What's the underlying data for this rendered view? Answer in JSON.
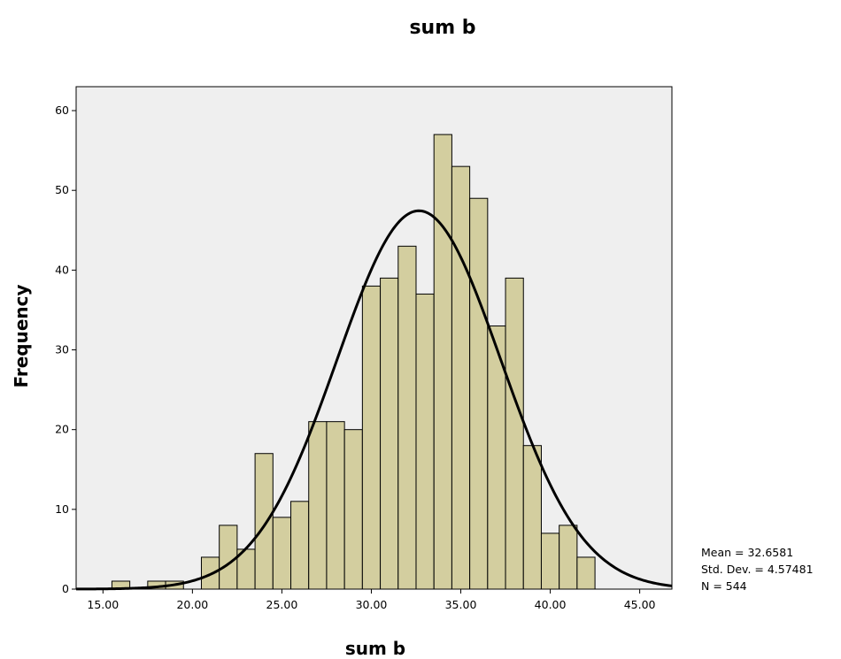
{
  "chart_data": {
    "type": "bar",
    "title": "sum b",
    "xlabel": "sum b",
    "ylabel": "Frequency",
    "xlim": [
      13.5,
      46.8
    ],
    "ylim": [
      0,
      63
    ],
    "x_ticks": [
      15,
      20,
      25,
      30,
      35,
      40,
      45
    ],
    "x_tick_labels": [
      "15.00",
      "20.00",
      "25.00",
      "30.00",
      "35.00",
      "40.00",
      "45.00"
    ],
    "y_ticks": [
      0,
      10,
      20,
      30,
      40,
      50,
      60
    ],
    "y_tick_labels": [
      "0",
      "10",
      "20",
      "30",
      "40",
      "50",
      "60"
    ],
    "bin_width": 1,
    "bins": [
      {
        "start": 15.5,
        "end": 16.5,
        "count": 1
      },
      {
        "start": 17.5,
        "end": 18.5,
        "count": 1
      },
      {
        "start": 18.5,
        "end": 19.5,
        "count": 1
      },
      {
        "start": 20.5,
        "end": 21.5,
        "count": 4
      },
      {
        "start": 21.5,
        "end": 22.5,
        "count": 8
      },
      {
        "start": 22.5,
        "end": 23.5,
        "count": 5
      },
      {
        "start": 23.5,
        "end": 24.5,
        "count": 17
      },
      {
        "start": 24.5,
        "end": 25.5,
        "count": 9
      },
      {
        "start": 25.5,
        "end": 26.5,
        "count": 11
      },
      {
        "start": 26.5,
        "end": 27.5,
        "count": 21
      },
      {
        "start": 27.5,
        "end": 28.5,
        "count": 21
      },
      {
        "start": 28.5,
        "end": 29.5,
        "count": 20
      },
      {
        "start": 29.5,
        "end": 30.5,
        "count": 38
      },
      {
        "start": 30.5,
        "end": 31.5,
        "count": 39
      },
      {
        "start": 31.5,
        "end": 32.5,
        "count": 43
      },
      {
        "start": 32.5,
        "end": 33.5,
        "count": 37
      },
      {
        "start": 33.5,
        "end": 34.5,
        "count": 57
      },
      {
        "start": 34.5,
        "end": 35.5,
        "count": 53
      },
      {
        "start": 35.5,
        "end": 36.5,
        "count": 49
      },
      {
        "start": 36.5,
        "end": 37.5,
        "count": 33
      },
      {
        "start": 37.5,
        "end": 38.5,
        "count": 39
      },
      {
        "start": 38.5,
        "end": 39.5,
        "count": 18
      },
      {
        "start": 39.5,
        "end": 40.5,
        "count": 7
      },
      {
        "start": 40.5,
        "end": 41.5,
        "count": 8
      },
      {
        "start": 41.5,
        "end": 42.5,
        "count": 4
      }
    ],
    "normal_curve": {
      "mean": 32.6581,
      "std_dev": 4.57481,
      "n": 544
    },
    "stats_text": [
      "Mean = 32.6581",
      "Std. Dev. = 4.57481",
      "N = 544"
    ],
    "grid": false,
    "legend": "none"
  }
}
